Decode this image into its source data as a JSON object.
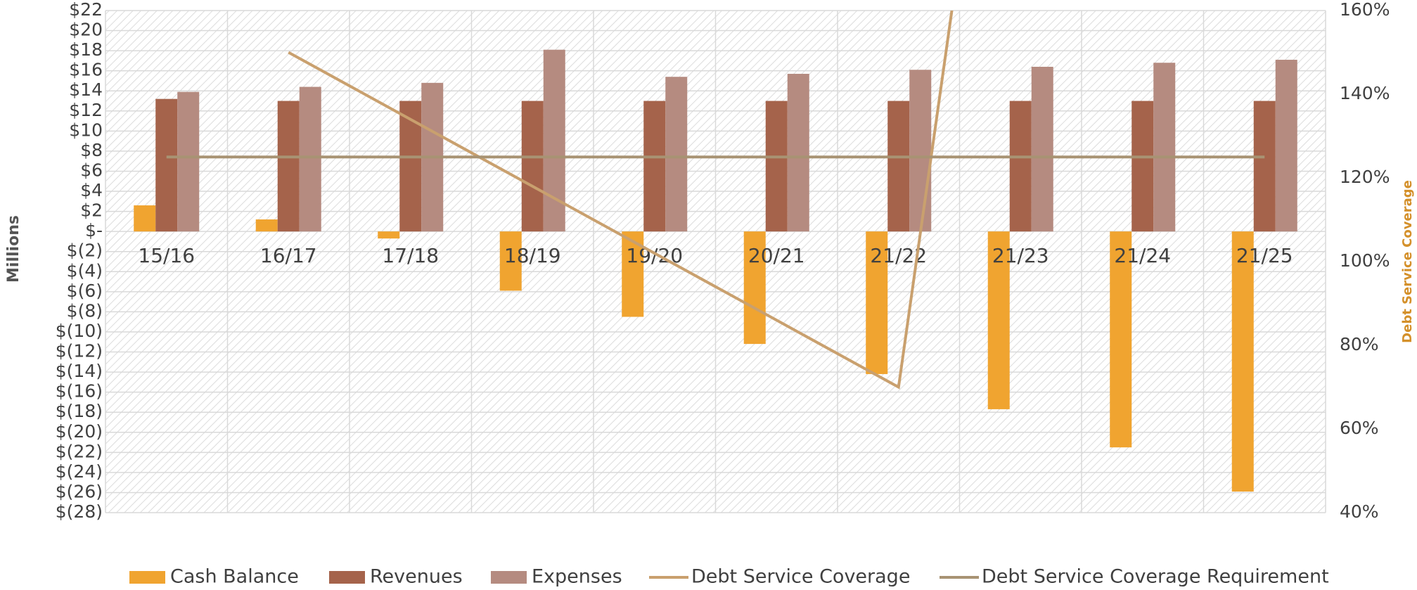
{
  "chart_data": {
    "type": "bar",
    "y_label": "Millions",
    "y2_label": "Debt Service Coverage",
    "categories": [
      "15/16",
      "16/17",
      "17/18",
      "18/19",
      "19/20",
      "20/21",
      "21/22",
      "21/23",
      "21/24",
      "21/25"
    ],
    "series": [
      {
        "name": "Cash Balance",
        "color": "#f0a430",
        "values": [
          2.6,
          1.2,
          -0.7,
          -5.9,
          -8.5,
          -11.2,
          -14.2,
          -17.7,
          -21.5,
          -25.9
        ]
      },
      {
        "name": "Revenues",
        "color": "#a5634b",
        "values": [
          13.2,
          13.0,
          13.0,
          13.0,
          13.0,
          13.0,
          13.0,
          13.0,
          13.0,
          13.0
        ]
      },
      {
        "name": "Expenses",
        "color": "#b58b80",
        "values": [
          13.9,
          14.4,
          14.8,
          18.1,
          15.4,
          15.7,
          16.1,
          16.4,
          16.8,
          17.1
        ]
      },
      {
        "name": "Debt Service Coverage",
        "color": "#c9a06e",
        "type": "line",
        "axis": "y2",
        "values": [
          null,
          150,
          134,
          118,
          102,
          86,
          70,
          276,
          null,
          null
        ]
      },
      {
        "name": "Debt Service Coverage Requirement",
        "color": "#a89373",
        "type": "line",
        "axis": "y2",
        "values": [
          125,
          125,
          125,
          125,
          125,
          125,
          125,
          125,
          125,
          125
        ]
      }
    ],
    "ylim": [
      -28,
      22
    ],
    "yticks": [
      {
        "value": 22,
        "label": "$22"
      },
      {
        "value": 20,
        "label": "$20"
      },
      {
        "value": 18,
        "label": "$18"
      },
      {
        "value": 16,
        "label": "$16"
      },
      {
        "value": 14,
        "label": "$14"
      },
      {
        "value": 12,
        "label": "$12"
      },
      {
        "value": 10,
        "label": "$10"
      },
      {
        "value": 8,
        "label": "$8"
      },
      {
        "value": 6,
        "label": "$6"
      },
      {
        "value": 4,
        "label": "$4"
      },
      {
        "value": 2,
        "label": "$2"
      },
      {
        "value": 0,
        "label": "$-"
      },
      {
        "value": -2,
        "label": "$(2)"
      },
      {
        "value": -4,
        "label": "$(4)"
      },
      {
        "value": -6,
        "label": "$(6)"
      },
      {
        "value": -8,
        "label": "$(8)"
      },
      {
        "value": -10,
        "label": "$(10)"
      },
      {
        "value": -12,
        "label": "$(12)"
      },
      {
        "value": -14,
        "label": "$(14)"
      },
      {
        "value": -16,
        "label": "$(16)"
      },
      {
        "value": -18,
        "label": "$(18)"
      },
      {
        "value": -20,
        "label": "$(20)"
      },
      {
        "value": -22,
        "label": "$(22)"
      },
      {
        "value": -24,
        "label": "$(24)"
      },
      {
        "value": -26,
        "label": "$(26)"
      },
      {
        "value": -28,
        "label": "$(28)"
      }
    ],
    "y2lim": [
      40,
      160
    ],
    "y2ticks": [
      {
        "value": 40,
        "label": "40%"
      },
      {
        "value": 60,
        "label": "60%"
      },
      {
        "value": 80,
        "label": "80%"
      },
      {
        "value": 100,
        "label": "100%"
      },
      {
        "value": 120,
        "label": "120%"
      },
      {
        "value": 140,
        "label": "140%"
      },
      {
        "value": 160,
        "label": "160%"
      }
    ],
    "grid": true,
    "legend": "bottom"
  }
}
